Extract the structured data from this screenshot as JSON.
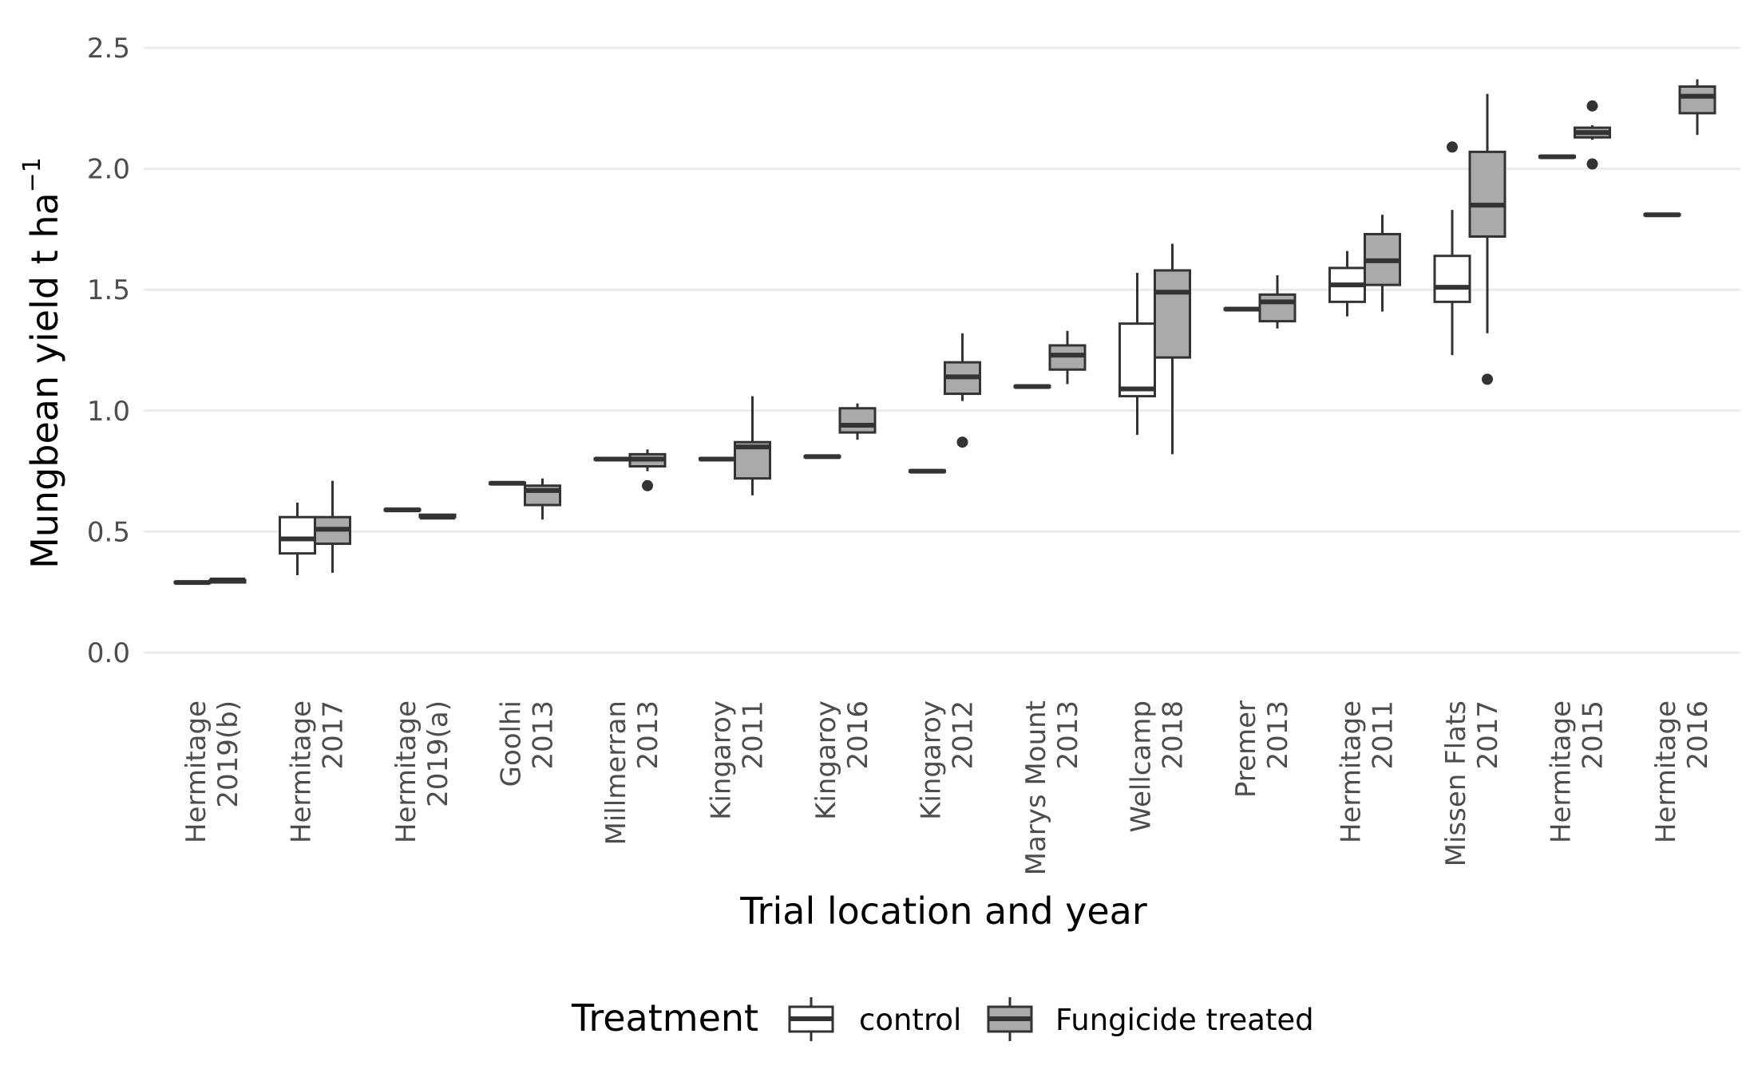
{
  "chart_data": {
    "type": "boxplot",
    "title": "",
    "xlabel": "Trial location and year",
    "ylabel": "Mungbean yield  t ha",
    "ylabel_superscript": "−1",
    "ylim": [
      0,
      2.5
    ],
    "yticks": [
      "0.0",
      "0.5",
      "1.0",
      "1.5",
      "2.0",
      "2.5"
    ],
    "grid": true,
    "legend": {
      "title": "Treatment",
      "position": "bottom",
      "entries": [
        {
          "name": "control",
          "fill": "#ffffff"
        },
        {
          "name": "Fungicide treated",
          "fill": "#aaaaaa"
        }
      ]
    },
    "categories": [
      {
        "line1": "Hermitage",
        "line2": "2019(b)"
      },
      {
        "line1": "Hermitage",
        "line2": "2017"
      },
      {
        "line1": "Hermitage",
        "line2": "2019(a)"
      },
      {
        "line1": "Goolhi",
        "line2": "2013"
      },
      {
        "line1": "Millmerran",
        "line2": "2013"
      },
      {
        "line1": "Kingaroy",
        "line2": "2011"
      },
      {
        "line1": "Kingaroy",
        "line2": "2016"
      },
      {
        "line1": "Kingaroy",
        "line2": "2012"
      },
      {
        "line1": "Marys Mount",
        "line2": "2013"
      },
      {
        "line1": "Wellcamp",
        "line2": "2018"
      },
      {
        "line1": "Premer",
        "line2": "2013"
      },
      {
        "line1": "Hermitage",
        "line2": "2011"
      },
      {
        "line1": "Missen Flats",
        "line2": "2017"
      },
      {
        "line1": "Hermitage",
        "line2": "2015"
      },
      {
        "line1": "Hermitage",
        "line2": "2016"
      }
    ],
    "series": [
      {
        "name": "control",
        "boxes": [
          {
            "min": 0.29,
            "q1": 0.29,
            "median": 0.29,
            "q3": 0.29,
            "max": 0.29,
            "outliers": []
          },
          {
            "min": 0.32,
            "q1": 0.41,
            "median": 0.47,
            "q3": 0.56,
            "max": 0.62,
            "outliers": []
          },
          {
            "min": 0.59,
            "q1": 0.59,
            "median": 0.59,
            "q3": 0.59,
            "max": 0.59,
            "outliers": []
          },
          {
            "min": 0.7,
            "q1": 0.7,
            "median": 0.7,
            "q3": 0.7,
            "max": 0.7,
            "outliers": []
          },
          {
            "min": 0.8,
            "q1": 0.8,
            "median": 0.8,
            "q3": 0.8,
            "max": 0.8,
            "outliers": []
          },
          {
            "min": 0.8,
            "q1": 0.8,
            "median": 0.8,
            "q3": 0.8,
            "max": 0.8,
            "outliers": []
          },
          {
            "min": 0.81,
            "q1": 0.81,
            "median": 0.81,
            "q3": 0.81,
            "max": 0.81,
            "outliers": []
          },
          {
            "min": 0.75,
            "q1": 0.75,
            "median": 0.75,
            "q3": 0.75,
            "max": 0.75,
            "outliers": []
          },
          {
            "min": 1.1,
            "q1": 1.1,
            "median": 1.1,
            "q3": 1.1,
            "max": 1.1,
            "outliers": []
          },
          {
            "min": 0.9,
            "q1": 1.06,
            "median": 1.09,
            "q3": 1.36,
            "max": 1.57,
            "outliers": []
          },
          {
            "min": 1.42,
            "q1": 1.42,
            "median": 1.42,
            "q3": 1.42,
            "max": 1.42,
            "outliers": []
          },
          {
            "min": 1.39,
            "q1": 1.45,
            "median": 1.52,
            "q3": 1.59,
            "max": 1.66,
            "outliers": []
          },
          {
            "min": 1.23,
            "q1": 1.45,
            "median": 1.51,
            "q3": 1.64,
            "max": 1.83,
            "outliers": [
              2.09
            ]
          },
          {
            "min": 2.05,
            "q1": 2.05,
            "median": 2.05,
            "q3": 2.05,
            "max": 2.05,
            "outliers": []
          },
          {
            "min": 1.81,
            "q1": 1.81,
            "median": 1.81,
            "q3": 1.81,
            "max": 1.81,
            "outliers": []
          }
        ]
      },
      {
        "name": "Fungicide treated",
        "boxes": [
          {
            "min": 0.29,
            "q1": 0.29,
            "median": 0.3,
            "q3": 0.3,
            "max": 0.31,
            "outliers": []
          },
          {
            "min": 0.33,
            "q1": 0.45,
            "median": 0.51,
            "q3": 0.56,
            "max": 0.71,
            "outliers": []
          },
          {
            "min": 0.56,
            "q1": 0.56,
            "median": 0.56,
            "q3": 0.57,
            "max": 0.57,
            "outliers": []
          },
          {
            "min": 0.55,
            "q1": 0.61,
            "median": 0.67,
            "q3": 0.69,
            "max": 0.72,
            "outliers": []
          },
          {
            "min": 0.75,
            "q1": 0.77,
            "median": 0.8,
            "q3": 0.82,
            "max": 0.84,
            "outliers": [
              0.69
            ]
          },
          {
            "min": 0.65,
            "q1": 0.72,
            "median": 0.85,
            "q3": 0.87,
            "max": 1.06,
            "outliers": []
          },
          {
            "min": 0.88,
            "q1": 0.91,
            "median": 0.94,
            "q3": 1.01,
            "max": 1.03,
            "outliers": []
          },
          {
            "min": 1.04,
            "q1": 1.07,
            "median": 1.14,
            "q3": 1.2,
            "max": 1.32,
            "outliers": [
              0.87
            ]
          },
          {
            "min": 1.11,
            "q1": 1.17,
            "median": 1.23,
            "q3": 1.27,
            "max": 1.33,
            "outliers": []
          },
          {
            "min": 0.82,
            "q1": 1.22,
            "median": 1.49,
            "q3": 1.58,
            "max": 1.69,
            "outliers": []
          },
          {
            "min": 1.34,
            "q1": 1.37,
            "median": 1.45,
            "q3": 1.48,
            "max": 1.56,
            "outliers": []
          },
          {
            "min": 1.41,
            "q1": 1.52,
            "median": 1.62,
            "q3": 1.73,
            "max": 1.81,
            "outliers": []
          },
          {
            "min": 1.32,
            "q1": 1.72,
            "median": 1.85,
            "q3": 2.07,
            "max": 2.31,
            "outliers": [
              1.13
            ]
          },
          {
            "min": 2.12,
            "q1": 2.13,
            "median": 2.15,
            "q3": 2.17,
            "max": 2.18,
            "outliers": [
              2.02,
              2.26
            ]
          },
          {
            "min": 2.14,
            "q1": 2.23,
            "median": 2.3,
            "q3": 2.34,
            "max": 2.37,
            "outliers": []
          }
        ]
      }
    ]
  }
}
